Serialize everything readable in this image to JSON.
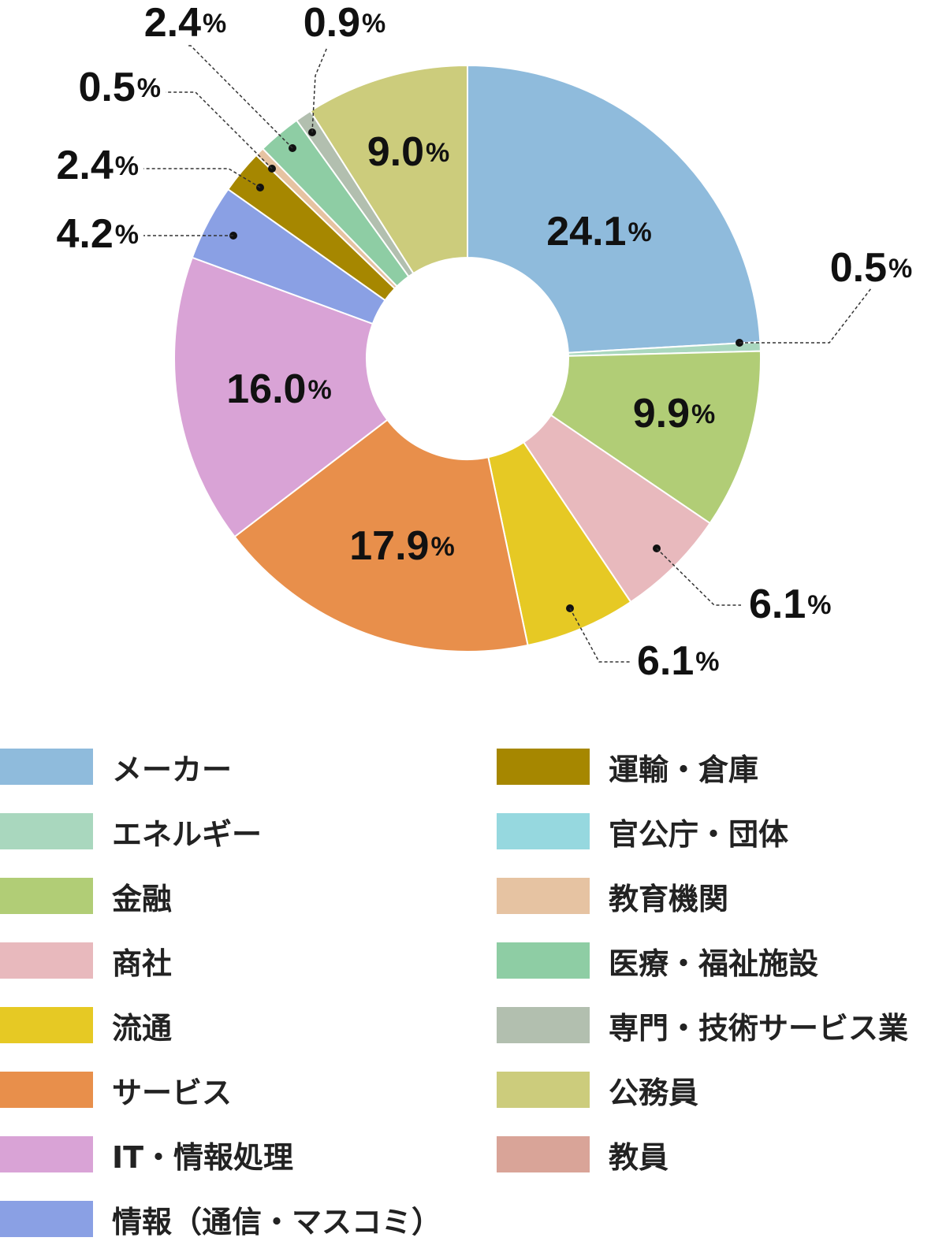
{
  "chart_data": {
    "type": "pie",
    "donut": true,
    "unit": "%",
    "categories": [
      "メーカー",
      "エネルギー",
      "金融",
      "商社",
      "流通",
      "サービス",
      "IT・情報処理",
      "情報（通信・マスコミ）",
      "運輸・倉庫",
      "官公庁・団体",
      "教育機関",
      "医療・福祉施設",
      "専門・技術サービス業",
      "公務員",
      "教員"
    ],
    "values": [
      24.1,
      0.5,
      9.9,
      6.1,
      6.1,
      17.9,
      16.0,
      4.2,
      2.4,
      0.0,
      0.5,
      2.4,
      0.9,
      9.0,
      0.0
    ],
    "data_labels": [
      "24.1",
      "0.5",
      "9.9",
      "6.1",
      "6.1",
      "17.9",
      "16.0",
      "4.2",
      "2.4",
      "",
      "0.5",
      "2.4",
      "0.9",
      "9.0",
      ""
    ],
    "colors": [
      "#8fbbdc",
      "#a9d7be",
      "#b1cd76",
      "#e8b9bd",
      "#e6c924",
      "#e88f4b",
      "#d9a3d6",
      "#8aa0e4",
      "#a68700",
      "#96d8df",
      "#e6c3a2",
      "#8ecda4",
      "#b2bfaf",
      "#cccc7c",
      "#d9a498"
    ],
    "legend": {
      "position": "bottom",
      "columns": 2
    }
  }
}
